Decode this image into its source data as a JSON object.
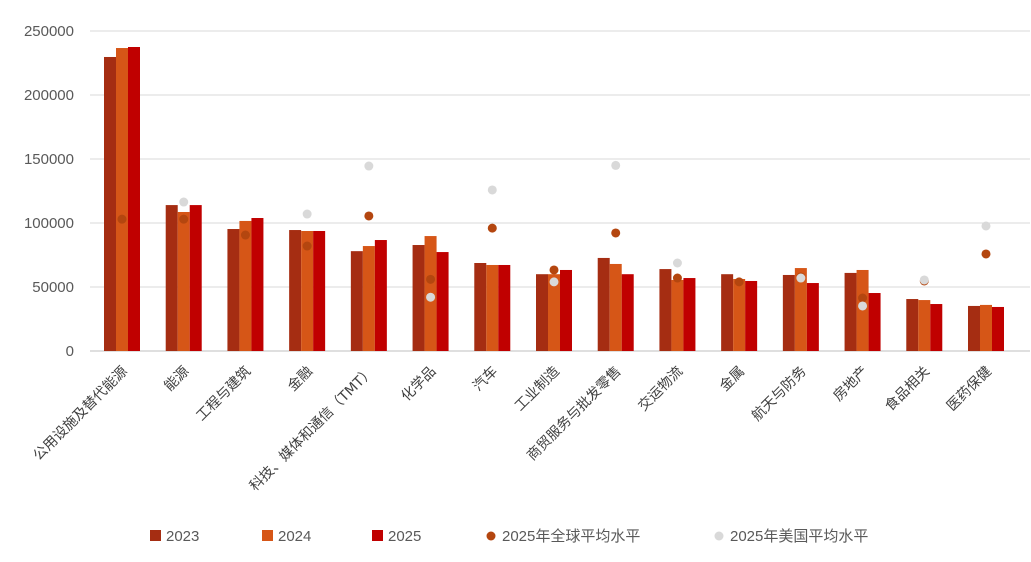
{
  "chart_data": {
    "type": "bar",
    "title": "",
    "xlabel": "",
    "ylabel": "",
    "ylim": [
      0,
      250000
    ],
    "yticks": [
      "0",
      "50000",
      "100000",
      "150000",
      "200000",
      "250000"
    ],
    "grid": true,
    "legend_position": "bottom",
    "categories": [
      "公用设施及替代能源",
      "能源",
      "工程与建筑",
      "金融",
      "科技、媒体和通信（TMT）",
      "化学品",
      "汽车",
      "工业制造",
      "商贸服务与批发零售",
      "交运物流",
      "金属",
      "航天与防务",
      "房地产",
      "食品相关",
      "医药保健"
    ],
    "series": [
      {
        "name": "2023",
        "kind": "bar",
        "color": "#A52D12",
        "values": [
          229700,
          114000,
          95300,
          94500,
          78000,
          82800,
          68750,
          60000,
          72700,
          64000,
          60000,
          59400,
          61000,
          40600,
          35200
        ]
      },
      {
        "name": "2024",
        "kind": "bar",
        "color": "#D65617",
        "values": [
          236700,
          108600,
          101600,
          93750,
          82000,
          89800,
          67200,
          60000,
          68000,
          55500,
          56250,
          64800,
          63300,
          39800,
          36000
        ]
      },
      {
        "name": "2025",
        "kind": "bar",
        "color": "#C00000",
        "values": [
          237500,
          114000,
          103900,
          93750,
          86700,
          77300,
          67200,
          63300,
          60000,
          57000,
          54700,
          53100,
          45300,
          36700,
          34400
        ]
      },
      {
        "name": "2025年全球平均水平",
        "kind": "dot",
        "color": "#B4460F",
        "values": [
          103000,
          103000,
          90600,
          82000,
          105500,
          56000,
          96000,
          63300,
          92200,
          57000,
          54000,
          57800,
          41400,
          54700,
          75800
        ]
      },
      {
        "name": "2025年美国平均水平",
        "kind": "dot",
        "color": "#D9D9D9",
        "values": [
          null,
          116400,
          null,
          107000,
          144500,
          42000,
          125800,
          54000,
          145000,
          68750,
          null,
          57000,
          35200,
          55500,
          97700
        ]
      }
    ]
  }
}
